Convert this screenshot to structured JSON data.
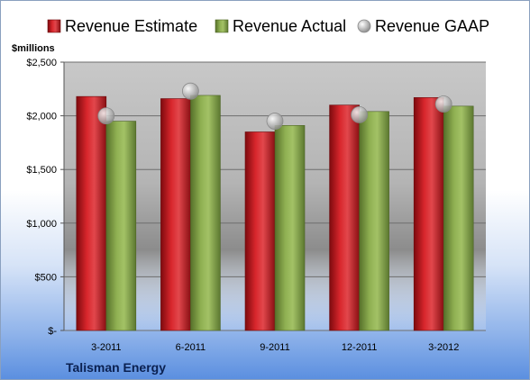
{
  "chart_data": {
    "type": "bar",
    "categories": [
      "3-2011",
      "6-2011",
      "9-2011",
      "12-2011",
      "3-2012"
    ],
    "series": [
      {
        "name": "Revenue Estimate",
        "type": "bar",
        "color": "#c0161c",
        "values": [
          2180,
          2160,
          1850,
          2100,
          2170
        ]
      },
      {
        "name": "Revenue Actual",
        "type": "bar",
        "color": "#7f9f45",
        "values": [
          1950,
          2190,
          1910,
          2040,
          2090
        ]
      },
      {
        "name": "Revenue GAAP",
        "type": "marker",
        "color": "#b0b0b0",
        "values": [
          2000,
          2230,
          1950,
          2010,
          2110
        ]
      }
    ],
    "ylabel": "$millions",
    "ylim": [
      0,
      2500
    ],
    "yticks": [
      0,
      500,
      1000,
      1500,
      2000,
      2500
    ],
    "ytick_labels": [
      "$-",
      "$500",
      "$1,000",
      "$1,500",
      "$2,000",
      "$2,500"
    ],
    "grid": true,
    "legend": "top"
  },
  "footer": {
    "company": "Talisman Energy"
  }
}
